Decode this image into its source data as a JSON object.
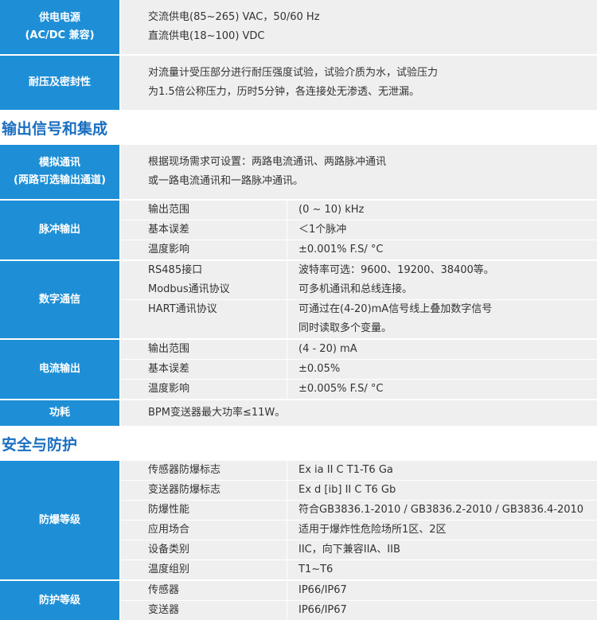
{
  "sections": [
    {
      "rows": [
        {
          "label": [
            "供电电源",
            "(AC/DC 兼容)"
          ],
          "text": [
            "交流供电(85~265) VAC，50/60 Hz",
            "直流供电(18~100) VDC"
          ]
        },
        {
          "label": [
            "耐压及密封性"
          ],
          "text": [
            "对流量计受压部分进行耐压强度试验，试验介质为水，试验压力",
            "为1.5倍公称压力，历时5分钟，各连接处无渗透、无泄漏。"
          ]
        }
      ]
    },
    {
      "heading": "输出信号和集成",
      "rows": [
        {
          "label": [
            "模拟通讯",
            "(两路可选输出通道)"
          ],
          "text": [
            "根据现场需求可设置：两路电流通讯、两路脉冲通讯",
            "或一路电流通讯和一路脉冲通讯。"
          ]
        },
        {
          "label": [
            "脉冲输出"
          ],
          "items": [
            {
              "name": [
                "输出范围"
              ],
              "value": [
                "(0 ~ 10) kHz"
              ]
            },
            {
              "name": [
                "基本误差"
              ],
              "value": [
                "＜1个脉冲"
              ]
            },
            {
              "name": [
                "温度影响"
              ],
              "value": [
                "±0.001% F.S/ °C"
              ]
            }
          ]
        },
        {
          "label": [
            "数字通信"
          ],
          "items": [
            {
              "name": [
                "RS485接口",
                "Modbus通讯协议"
              ],
              "value": [
                "波特率可选：9600、19200、38400等。",
                "可多机通讯和总线连接。"
              ]
            },
            {
              "name": [
                "HART通讯协议"
              ],
              "value": [
                "可通过在(4-20)mA信号线上叠加数字信号",
                "同时读取多个变量。"
              ]
            }
          ]
        },
        {
          "label": [
            "电流输出"
          ],
          "items": [
            {
              "name": [
                "输出范围"
              ],
              "value": [
                "(4 - 20) mA"
              ]
            },
            {
              "name": [
                "基本误差"
              ],
              "value": [
                "±0.05%"
              ]
            },
            {
              "name": [
                "温度影响"
              ],
              "value": [
                "±0.005% F.S/ °C"
              ]
            }
          ]
        },
        {
          "label": [
            "功耗"
          ],
          "text": [
            "BPM变送器最大功率≤11W。"
          ]
        }
      ]
    },
    {
      "heading": "安全与防护",
      "rows": [
        {
          "label": [
            "防爆等级"
          ],
          "items": [
            {
              "name": [
                "传感器防爆标志"
              ],
              "value": [
                "Ex ia  II C T1-T6 Ga"
              ]
            },
            {
              "name": [
                "变送器防爆标志"
              ],
              "value": [
                "Ex d [ib]  II C T6 Gb"
              ]
            },
            {
              "name": [
                "防爆性能"
              ],
              "value": [
                "符合GB3836.1-2010 / GB3836.2-2010 / GB3836.4-2010"
              ]
            },
            {
              "name": [
                "应用场合"
              ],
              "value": [
                "适用于爆炸性危险场所1区、2区"
              ]
            },
            {
              "name": [
                "设备类别"
              ],
              "value": [
                "IIC，向下兼容IIA、IIB"
              ]
            },
            {
              "name": [
                "温度组别"
              ],
              "value": [
                "T1~T6"
              ]
            }
          ]
        },
        {
          "label": [
            "防护等级"
          ],
          "items": [
            {
              "name": [
                "传感器"
              ],
              "value": [
                "IP66/IP67"
              ]
            },
            {
              "name": [
                "变送器"
              ],
              "value": [
                "IP66/IP67"
              ]
            }
          ]
        }
      ]
    }
  ]
}
